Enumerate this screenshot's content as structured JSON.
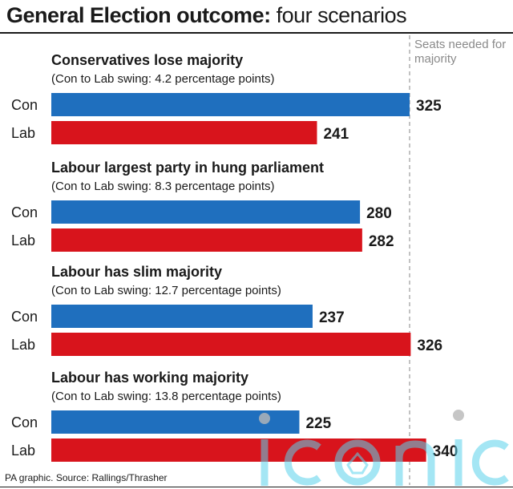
{
  "header": {
    "title_bold": "General Election outcome:",
    "title_rest": " four scenarios"
  },
  "threshold": {
    "label": "Seats needed for majority",
    "value": 325
  },
  "colors": {
    "Con": "#1f6fbe",
    "Lab": "#d8141c",
    "threshold_line": "#9a9a9a"
  },
  "chart_data": {
    "type": "bar",
    "orientation": "horizontal",
    "title": "General Election outcome: four scenarios",
    "reference_line": {
      "label": "Seats needed for majority",
      "value": 325
    },
    "scenarios": [
      {
        "title": "Conservatives lose majority",
        "subtitle": "(Con to Lab swing: 4.2 percentage points)",
        "bars": [
          {
            "party": "Con",
            "value": 325
          },
          {
            "party": "Lab",
            "value": 241
          }
        ]
      },
      {
        "title": "Labour largest party in hung parliament",
        "subtitle": "(Con to Lab swing: 8.3 percentage points)",
        "bars": [
          {
            "party": "Con",
            "value": 280
          },
          {
            "party": "Lab",
            "value": 282
          }
        ]
      },
      {
        "title": "Labour has slim majority",
        "subtitle": "(Con to Lab swing: 12.7 percentage points)",
        "bars": [
          {
            "party": "Con",
            "value": 237
          },
          {
            "party": "Lab",
            "value": 326
          }
        ]
      },
      {
        "title": "Labour has working majority",
        "subtitle": "(Con to Lab swing: 13.8 percentage points)",
        "bars": [
          {
            "party": "Con",
            "value": 225
          },
          {
            "party": "Lab",
            "value": 340
          }
        ]
      }
    ]
  },
  "footer": {
    "source": "PA graphic. Source: Rallings/Thrasher"
  },
  "watermark": {
    "text": "iconic"
  }
}
